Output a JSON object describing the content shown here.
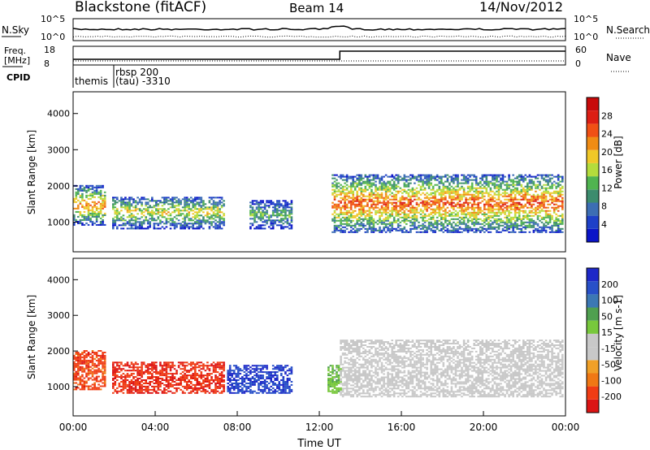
{
  "header": {
    "station": "Blackstone (fitACF)",
    "beam": "Beam 14",
    "date": "14/Nov/2012"
  },
  "top_panels": {
    "nsky_label": "N.Sky",
    "nsky_ticks": [
      "10^5",
      "10^0"
    ],
    "nsearch_label": "N.Search",
    "nsearch_ticks": [
      "10^5",
      "10^0"
    ],
    "freq_label_line1": "Freq.",
    "freq_label_line2": "[MHz]",
    "freq_ticks": [
      "18",
      "8"
    ],
    "nave_label": "Nave",
    "nave_ticks": [
      "60",
      "0"
    ],
    "cpid_label": "CPID",
    "cpid_entries": [
      {
        "line1": "",
        "line2": "themis"
      },
      {
        "line1": "rbsp 200",
        "line2": "(tau)  -3310"
      }
    ]
  },
  "colors": {
    "power_scale": [
      "#0a14c8",
      "#1e40c8",
      "#3c6eb4",
      "#3c8c6e",
      "#50b450",
      "#b4dc3c",
      "#f0c828",
      "#f08c14",
      "#f05014",
      "#dc1e14",
      "#c80a0a"
    ],
    "velocity_scale": [
      "#1e28c8",
      "#2850c8",
      "#3c78b4",
      "#50a050",
      "#78c83c",
      "#c8c8c8",
      "#c8c8c8",
      "#f0a028",
      "#f07814",
      "#f03c14",
      "#dc1414"
    ],
    "velocity_ground": "#c8c8c8"
  },
  "chart_data": [
    {
      "type": "heatmap",
      "title": "",
      "xlabel": "Time UT",
      "ylabel": "Slant Range [km]",
      "xlim": [
        "00:00",
        "24:00"
      ],
      "ylim": [
        180,
        4600
      ],
      "x_ticks": [
        "00:00",
        "04:00",
        "08:00",
        "12:00",
        "16:00",
        "20:00",
        "00:00"
      ],
      "y_ticks": [
        "1000",
        "2000",
        "3000",
        "4000"
      ],
      "colorbar": {
        "label": "Power [dB]",
        "ticks": [
          "28",
          "24",
          "20",
          "16",
          "12",
          "8",
          "4"
        ],
        "range": [
          0,
          30
        ]
      },
      "scatter_regions": [
        {
          "t_start": 0.0,
          "t_end": 1.6,
          "range_low": 900,
          "range_high": 2000,
          "power": 18
        },
        {
          "t_start": 1.9,
          "t_end": 7.3,
          "range_low": 800,
          "range_high": 1700,
          "power": 14
        },
        {
          "t_start": 8.6,
          "t_end": 10.6,
          "range_low": 800,
          "range_high": 1600,
          "power": 10
        },
        {
          "t_start": 12.6,
          "t_end": 23.9,
          "range_low": 700,
          "range_high": 2300,
          "power": 20
        }
      ]
    },
    {
      "type": "heatmap",
      "title": "",
      "xlabel": "Time UT",
      "ylabel": "Slant Range [km]",
      "xlim": [
        "00:00",
        "24:00"
      ],
      "ylim": [
        180,
        4600
      ],
      "x_ticks": [
        "00:00",
        "04:00",
        "08:00",
        "12:00",
        "16:00",
        "20:00",
        "00:00"
      ],
      "y_ticks": [
        "1000",
        "2000",
        "3000",
        "4000"
      ],
      "colorbar": {
        "label": "Velocity [m s-1]",
        "ticks": [
          "200",
          "100",
          "50",
          "15",
          "-15",
          "-50",
          "-100",
          "-200"
        ],
        "range": [
          -250,
          250
        ]
      },
      "scatter_regions": [
        {
          "t_start": 0.0,
          "t_end": 1.6,
          "range_low": 900,
          "range_high": 2000,
          "velocity": -180
        },
        {
          "t_start": 1.9,
          "t_end": 7.3,
          "range_low": 800,
          "range_high": 1700,
          "velocity": -200
        },
        {
          "t_start": 7.5,
          "t_end": 10.6,
          "range_low": 800,
          "range_high": 1600,
          "velocity": 200
        },
        {
          "t_start": 12.4,
          "t_end": 13.0,
          "range_low": 800,
          "range_high": 1600,
          "velocity": 50
        },
        {
          "t_start": 13.0,
          "t_end": 23.9,
          "range_low": 700,
          "range_high": 2300,
          "velocity": 0
        }
      ]
    }
  ]
}
